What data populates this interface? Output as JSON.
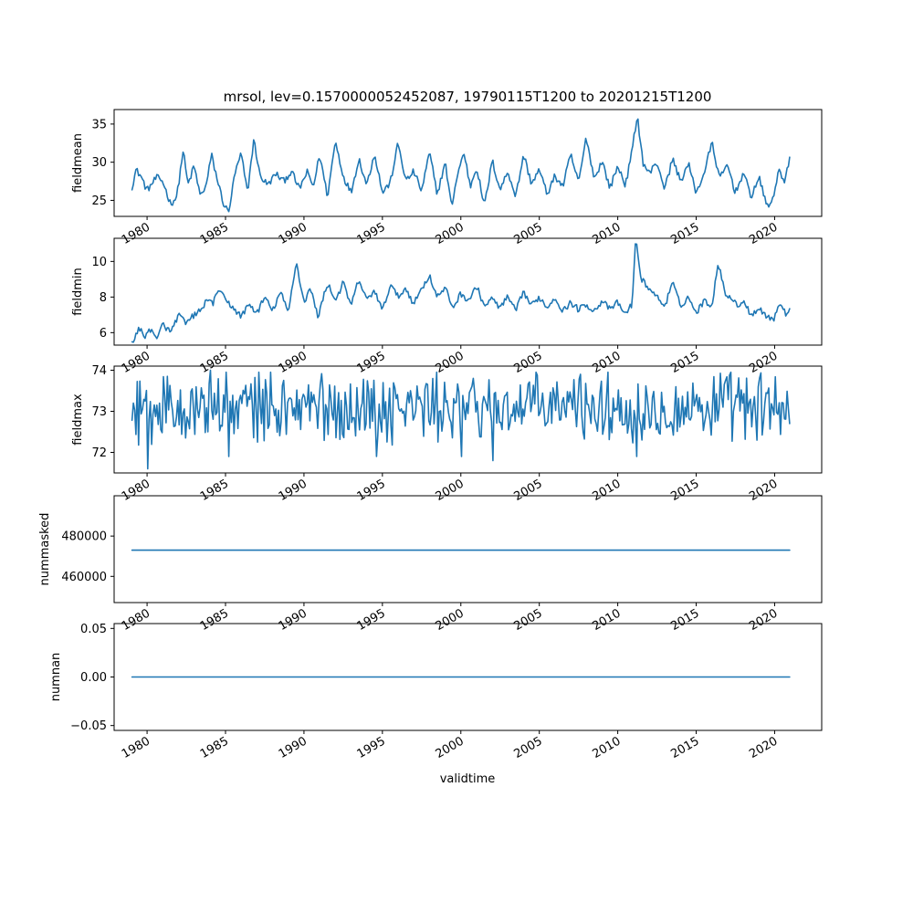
{
  "title": "mrsol, lev=0.1570000052452087, 19790115T1200 to 20201215T1200",
  "xlabel": "validtime",
  "colors": {
    "line": "#1f77b4"
  },
  "x_ticks": [
    "1980",
    "1985",
    "1990",
    "1995",
    "2000",
    "2005",
    "2010",
    "2015",
    "2020"
  ],
  "chart_data": [
    {
      "type": "line",
      "name": "fieldmean",
      "ylabel": "fieldmean",
      "x_start": "1979-01-15",
      "x_end": "2020-12-15",
      "xlim": [
        1977.9,
        2023.0
      ],
      "ylim": [
        22.9,
        36.9
      ],
      "yticks": [
        25,
        30,
        35
      ],
      "ytick_labels": [
        "25",
        "30",
        "35"
      ],
      "grid": false,
      "anchors": [
        [
          1979.04,
          26.8
        ],
        [
          1979.3,
          29.0
        ],
        [
          1979.6,
          28.2
        ],
        [
          1980.0,
          26.3
        ],
        [
          1980.6,
          28.0
        ],
        [
          1981.0,
          27.5
        ],
        [
          1981.5,
          24.5
        ],
        [
          1981.9,
          25.5
        ],
        [
          1982.3,
          31.6
        ],
        [
          1982.6,
          27.0
        ],
        [
          1983.0,
          29.5
        ],
        [
          1983.4,
          25.5
        ],
        [
          1983.8,
          27.2
        ],
        [
          1984.1,
          31.0
        ],
        [
          1984.5,
          27.5
        ],
        [
          1984.9,
          24.4
        ],
        [
          1985.2,
          23.4
        ],
        [
          1985.6,
          28.5
        ],
        [
          1986.0,
          31.1
        ],
        [
          1986.4,
          26.0
        ],
        [
          1986.8,
          33.0
        ],
        [
          1987.2,
          28.2
        ],
        [
          1987.7,
          27.0
        ],
        [
          1988.2,
          28.5
        ],
        [
          1988.7,
          27.5
        ],
        [
          1989.2,
          28.8
        ],
        [
          1989.7,
          26.5
        ],
        [
          1990.2,
          28.7
        ],
        [
          1990.6,
          26.8
        ],
        [
          1991.0,
          31.0
        ],
        [
          1991.5,
          25.5
        ],
        [
          1992.0,
          32.8
        ],
        [
          1992.5,
          28.2
        ],
        [
          1993.0,
          26.0
        ],
        [
          1993.5,
          30.5
        ],
        [
          1994.0,
          27.0
        ],
        [
          1994.5,
          31.2
        ],
        [
          1995.0,
          26.0
        ],
        [
          1995.5,
          27.3
        ],
        [
          1996.0,
          32.5
        ],
        [
          1996.5,
          27.5
        ],
        [
          1997.0,
          28.8
        ],
        [
          1997.5,
          26.2
        ],
        [
          1998.0,
          31.3
        ],
        [
          1998.5,
          25.8
        ],
        [
          1999.0,
          30.0
        ],
        [
          1999.4,
          24.2
        ],
        [
          1999.8,
          28.5
        ],
        [
          2000.2,
          31.3
        ],
        [
          2000.6,
          26.8
        ],
        [
          2001.0,
          29.4
        ],
        [
          2001.5,
          24.2
        ],
        [
          2002.0,
          30.2
        ],
        [
          2002.5,
          26.4
        ],
        [
          2003.0,
          28.8
        ],
        [
          2003.5,
          25.5
        ],
        [
          2004.0,
          31.0
        ],
        [
          2004.5,
          27.2
        ],
        [
          2005.0,
          29.0
        ],
        [
          2005.5,
          25.8
        ],
        [
          2006.0,
          28.2
        ],
        [
          2006.5,
          26.8
        ],
        [
          2007.0,
          31.0
        ],
        [
          2007.5,
          27.3
        ],
        [
          2008.0,
          33.3
        ],
        [
          2008.5,
          27.8
        ],
        [
          2009.0,
          30.2
        ],
        [
          2009.5,
          26.6
        ],
        [
          2010.0,
          29.5
        ],
        [
          2010.5,
          27.0
        ],
        [
          2010.9,
          31.3
        ],
        [
          2011.25,
          36.2
        ],
        [
          2011.6,
          30.0
        ],
        [
          2012.0,
          28.5
        ],
        [
          2012.5,
          30.0
        ],
        [
          2013.0,
          26.5
        ],
        [
          2013.5,
          30.5
        ],
        [
          2014.0,
          27.5
        ],
        [
          2014.5,
          29.8
        ],
        [
          2015.0,
          26.0
        ],
        [
          2015.5,
          28.5
        ],
        [
          2016.0,
          32.6
        ],
        [
          2016.5,
          27.8
        ],
        [
          2017.0,
          29.7
        ],
        [
          2017.5,
          26.0
        ],
        [
          2018.0,
          28.6
        ],
        [
          2018.5,
          25.5
        ],
        [
          2019.0,
          28.0
        ],
        [
          2019.5,
          24.3
        ],
        [
          2019.9,
          25.0
        ],
        [
          2020.3,
          29.5
        ],
        [
          2020.6,
          27.0
        ],
        [
          2020.96,
          30.4
        ]
      ]
    },
    {
      "type": "line",
      "name": "fieldmin",
      "ylabel": "fieldmin",
      "x_start": "1979-01-15",
      "x_end": "2020-12-15",
      "xlim": [
        1977.9,
        2023.0
      ],
      "ylim": [
        5.3,
        11.3
      ],
      "yticks": [
        6,
        8,
        10
      ],
      "ytick_labels": [
        "6",
        "8",
        "10"
      ],
      "grid": false,
      "anchors": [
        [
          1979.04,
          5.5
        ],
        [
          1979.5,
          6.2
        ],
        [
          1979.9,
          5.8
        ],
        [
          1980.3,
          6.3
        ],
        [
          1980.6,
          5.5
        ],
        [
          1981.0,
          6.5
        ],
        [
          1981.5,
          6.0
        ],
        [
          1982.0,
          7.0
        ],
        [
          1982.5,
          6.5
        ],
        [
          1983.0,
          7.0
        ],
        [
          1983.5,
          7.3
        ],
        [
          1983.9,
          8.0
        ],
        [
          1984.2,
          7.5
        ],
        [
          1984.5,
          8.5
        ],
        [
          1985.0,
          7.8
        ],
        [
          1985.5,
          7.4
        ],
        [
          1986.0,
          6.9
        ],
        [
          1986.5,
          7.6
        ],
        [
          1987.0,
          7.1
        ],
        [
          1987.5,
          8.0
        ],
        [
          1988.0,
          7.2
        ],
        [
          1988.5,
          8.3
        ],
        [
          1989.0,
          7.1
        ],
        [
          1989.5,
          10.0
        ],
        [
          1990.0,
          7.7
        ],
        [
          1990.4,
          8.5
        ],
        [
          1990.9,
          6.9
        ],
        [
          1991.5,
          8.8
        ],
        [
          1992.0,
          7.8
        ],
        [
          1992.5,
          8.8
        ],
        [
          1993.0,
          7.5
        ],
        [
          1993.5,
          9.0
        ],
        [
          1994.0,
          7.8
        ],
        [
          1994.5,
          8.4
        ],
        [
          1995.0,
          7.2
        ],
        [
          1995.5,
          8.7
        ],
        [
          1996.0,
          8.0
        ],
        [
          1996.5,
          8.5
        ],
        [
          1997.0,
          7.6
        ],
        [
          1997.5,
          8.5
        ],
        [
          1998.0,
          9.2
        ],
        [
          1998.5,
          8.0
        ],
        [
          1999.0,
          8.5
        ],
        [
          1999.5,
          7.4
        ],
        [
          2000.0,
          8.2
        ],
        [
          2000.5,
          7.8
        ],
        [
          2001.0,
          8.6
        ],
        [
          2001.5,
          7.5
        ],
        [
          2002.0,
          7.9
        ],
        [
          2002.5,
          7.4
        ],
        [
          2003.0,
          8.0
        ],
        [
          2003.5,
          7.2
        ],
        [
          2004.0,
          8.3
        ],
        [
          2004.5,
          7.5
        ],
        [
          2005.0,
          8.0
        ],
        [
          2005.5,
          7.4
        ],
        [
          2006.0,
          8.0
        ],
        [
          2006.5,
          7.2
        ],
        [
          2007.0,
          7.7
        ],
        [
          2007.5,
          7.3
        ],
        [
          2008.0,
          7.6
        ],
        [
          2008.5,
          7.2
        ],
        [
          2009.0,
          7.8
        ],
        [
          2009.5,
          7.3
        ],
        [
          2010.0,
          7.7
        ],
        [
          2010.5,
          7.0
        ],
        [
          2010.9,
          7.6
        ],
        [
          2011.15,
          11.2
        ],
        [
          2011.5,
          9.0
        ],
        [
          2012.0,
          8.5
        ],
        [
          2012.5,
          8.0
        ],
        [
          2013.0,
          7.5
        ],
        [
          2013.5,
          8.8
        ],
        [
          2014.0,
          7.5
        ],
        [
          2014.5,
          8.0
        ],
        [
          2015.0,
          7.1
        ],
        [
          2015.5,
          7.8
        ],
        [
          2016.0,
          7.5
        ],
        [
          2016.4,
          10.0
        ],
        [
          2016.8,
          8.3
        ],
        [
          2017.2,
          8.0
        ],
        [
          2017.6,
          7.5
        ],
        [
          2018.0,
          7.8
        ],
        [
          2018.5,
          7.0
        ],
        [
          2019.0,
          7.4
        ],
        [
          2019.5,
          6.9
        ],
        [
          2020.0,
          6.8
        ],
        [
          2020.3,
          7.7
        ],
        [
          2020.8,
          6.9
        ],
        [
          2020.96,
          7.5
        ]
      ]
    },
    {
      "type": "line",
      "name": "fieldmax",
      "ylabel": "fieldmax",
      "x_start": "1979-01-15",
      "x_end": "2020-12-15",
      "xlim": [
        1977.9,
        2023.0
      ],
      "ylim": [
        71.5,
        74.1
      ],
      "yticks": [
        72,
        73,
        74
      ],
      "ytick_labels": [
        "72",
        "73",
        "74"
      ],
      "grid": false,
      "range": [
        71.6,
        74.0
      ],
      "extremes": [
        [
          1979.1,
          73.2
        ],
        [
          1980.0,
          71.6
        ],
        [
          1984.0,
          74.0
        ],
        [
          1985.2,
          71.9
        ],
        [
          1994.6,
          71.9
        ],
        [
          2000.0,
          71.9
        ],
        [
          2002.0,
          71.8
        ],
        [
          2007.6,
          73.9
        ],
        [
          2011.2,
          71.9
        ],
        [
          2020.96,
          72.7
        ]
      ]
    },
    {
      "type": "line",
      "name": "nummasked",
      "ylabel": "nummasked",
      "x_start": "1979-01-15",
      "x_end": "2020-12-15",
      "xlim": [
        1977.9,
        2023.0
      ],
      "ylim": [
        447000,
        500000
      ],
      "yticks": [
        460000,
        480000
      ],
      "ytick_labels": [
        "460000",
        "480000"
      ],
      "grid": false,
      "constant": 473000
    },
    {
      "type": "line",
      "name": "numnan",
      "ylabel": "numnan",
      "x_start": "1979-01-15",
      "x_end": "2020-12-15",
      "xlim": [
        1977.9,
        2023.0
      ],
      "ylim": [
        -0.055,
        0.055
      ],
      "yticks": [
        -0.05,
        0,
        0.05
      ],
      "ytick_labels": [
        "−0.05",
        "0.00",
        "0.05"
      ],
      "grid": false,
      "constant": 0
    }
  ]
}
